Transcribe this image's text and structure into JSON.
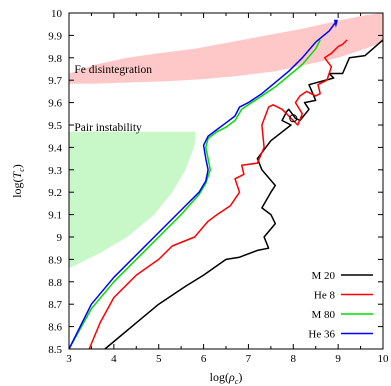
{
  "chart_data": {
    "type": "line",
    "xlabel": "log(ρc)",
    "ylabel": "log(Tc)",
    "xlim": [
      3,
      10
    ],
    "ylim": [
      8.5,
      10
    ],
    "xticks": [
      "3",
      "4",
      "5",
      "6",
      "7",
      "8",
      "9",
      "10"
    ],
    "yticks": [
      "8.5",
      "8.6",
      "8.7",
      "8.8",
      "8.9",
      "9",
      "9.1",
      "9.2",
      "9.3",
      "9.4",
      "9.5",
      "9.6",
      "9.7",
      "9.8",
      "9.9",
      "10"
    ],
    "legend_position": "bottom-right",
    "grid": false,
    "regions": [
      {
        "label": "Fe disintegration",
        "color": "#ffc8c8",
        "polygon": [
          [
            3.0,
            9.73
          ],
          [
            3.6,
            9.77
          ],
          [
            4.3,
            9.8
          ],
          [
            5.0,
            9.82
          ],
          [
            5.8,
            9.84
          ],
          [
            6.6,
            9.87
          ],
          [
            7.4,
            9.9
          ],
          [
            8.2,
            9.93
          ],
          [
            9.0,
            9.965
          ],
          [
            9.6,
            9.99
          ],
          [
            10.0,
            10.0
          ],
          [
            10.0,
            9.87
          ],
          [
            9.6,
            9.84
          ],
          [
            9.0,
            9.8
          ],
          [
            8.3,
            9.77
          ],
          [
            7.6,
            9.74
          ],
          [
            6.8,
            9.72
          ],
          [
            6.0,
            9.705
          ],
          [
            5.2,
            9.695
          ],
          [
            4.4,
            9.69
          ],
          [
            3.6,
            9.685
          ],
          [
            3.0,
            9.685
          ]
        ]
      },
      {
        "label": "Pair instability",
        "color": "#c8f8c8",
        "polygon": [
          [
            3.0,
            9.47
          ],
          [
            5.82,
            9.47
          ],
          [
            5.8,
            9.41
          ],
          [
            5.6,
            9.3
          ],
          [
            5.3,
            9.2
          ],
          [
            4.9,
            9.1
          ],
          [
            4.3,
            9.0
          ],
          [
            3.7,
            8.93
          ],
          [
            3.0,
            8.86
          ]
        ]
      }
    ],
    "series": [
      {
        "name": "M 20",
        "color": "#000000",
        "x": [
          3.8,
          4.4,
          5.0,
          5.6,
          6.0,
          6.5,
          6.8,
          7.2,
          7.45,
          7.35,
          7.6,
          7.5,
          7.3,
          7.5,
          7.6,
          7.3,
          7.2,
          7.5,
          7.95,
          7.75,
          7.85,
          7.9,
          8.05,
          8.15,
          8.35,
          8.25,
          8.5,
          8.35,
          8.9,
          8.8,
          9.1,
          9.25,
          9.6,
          10.0
        ],
        "y": [
          8.5,
          8.6,
          8.7,
          8.78,
          8.83,
          8.9,
          8.91,
          8.94,
          8.95,
          9.0,
          9.06,
          9.1,
          9.13,
          9.2,
          9.23,
          9.3,
          9.35,
          9.43,
          9.5,
          9.52,
          9.56,
          9.57,
          9.53,
          9.52,
          9.57,
          9.6,
          9.61,
          9.68,
          9.71,
          9.73,
          9.73,
          9.8,
          9.81,
          9.88
        ]
      },
      {
        "name": "He 8",
        "color": "#ff0000",
        "x": [
          3.45,
          3.7,
          4.0,
          4.5,
          5.0,
          5.3,
          5.8,
          6.1,
          6.3,
          6.6,
          6.8,
          6.7,
          6.9,
          6.85,
          7.2,
          7.35,
          7.3,
          7.45,
          7.55,
          7.75,
          7.9,
          8.0,
          8.1,
          8.2,
          8.05,
          8.15,
          8.3,
          8.5,
          8.6,
          8.55,
          8.75,
          8.85,
          8.7,
          8.85,
          9.0,
          9.1,
          9.2
        ],
        "y": [
          8.5,
          8.62,
          8.73,
          8.83,
          8.9,
          8.96,
          9.0,
          9.07,
          9.1,
          9.14,
          9.2,
          9.26,
          9.28,
          9.32,
          9.33,
          9.4,
          9.5,
          9.58,
          9.59,
          9.57,
          9.54,
          9.52,
          9.5,
          9.55,
          9.6,
          9.63,
          9.65,
          9.63,
          9.64,
          9.68,
          9.7,
          9.76,
          9.8,
          9.82,
          9.85,
          9.86,
          9.88
        ]
      },
      {
        "name": "M 80",
        "color": "#00dd00",
        "x": [
          3.0,
          3.5,
          4.0,
          4.5,
          5.0,
          5.5,
          5.9,
          6.05,
          6.15,
          6.1,
          6.05,
          6.1,
          6.3,
          6.5,
          6.7,
          6.85,
          7.0,
          7.3,
          7.6,
          7.9,
          8.2,
          8.5,
          8.6
        ],
        "y": [
          8.5,
          8.68,
          8.8,
          8.9,
          9.0,
          9.1,
          9.19,
          9.24,
          9.3,
          9.35,
          9.4,
          9.44,
          9.47,
          9.49,
          9.52,
          9.57,
          9.59,
          9.63,
          9.67,
          9.72,
          9.77,
          9.84,
          9.88
        ]
      },
      {
        "name": "He 36",
        "color": "#0000ff",
        "x": [
          3.0,
          3.5,
          4.0,
          4.5,
          5.0,
          5.5,
          5.9,
          6.05,
          6.1,
          6.05,
          6.0,
          6.1,
          6.3,
          6.5,
          6.7,
          6.8,
          7.0,
          7.3,
          7.6,
          7.9,
          8.2,
          8.5,
          8.8,
          8.95
        ],
        "y": [
          8.5,
          8.7,
          8.82,
          8.92,
          9.02,
          9.12,
          9.2,
          9.25,
          9.3,
          9.35,
          9.41,
          9.45,
          9.48,
          9.51,
          9.54,
          9.58,
          9.6,
          9.64,
          9.69,
          9.74,
          9.8,
          9.87,
          9.92,
          9.96
        ]
      }
    ]
  }
}
